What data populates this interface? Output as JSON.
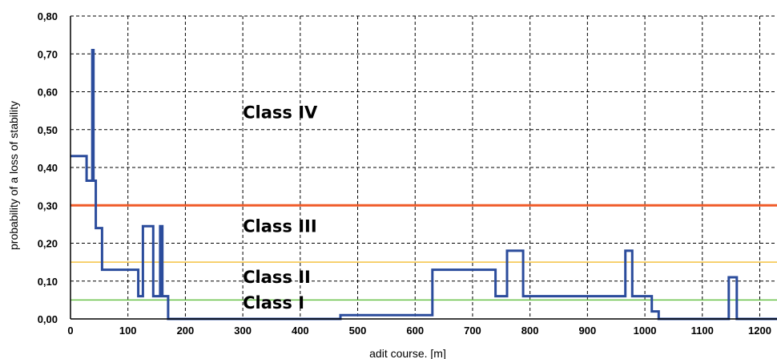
{
  "chart_data": {
    "type": "line",
    "title": "",
    "xlabel": "adit course. [m]",
    "ylabel": "probability of a loss of stability",
    "xlim": [
      0,
      1230
    ],
    "ylim": [
      0,
      0.8
    ],
    "grid": true,
    "grid_style": "dashed",
    "x_ticks": [
      0,
      100,
      200,
      300,
      400,
      500,
      600,
      700,
      800,
      900,
      1000,
      1100,
      1200
    ],
    "x_tick_labels": [
      "0",
      "100",
      "200",
      "300",
      "400",
      "500",
      "600",
      "700",
      "800",
      "900",
      "1000",
      "1100",
      "1200"
    ],
    "y_ticks": [
      0,
      0.1,
      0.2,
      0.3,
      0.4,
      0.5,
      0.6,
      0.7,
      0.8
    ],
    "y_tick_labels": [
      "0,00",
      "0,10",
      "0,20",
      "0,30",
      "0,40",
      "0,50",
      "0,60",
      "0,70",
      "0,80"
    ],
    "series": [
      {
        "color": "#2b4c9c",
        "step": true,
        "x": [
          0,
          28,
          28,
          38,
          38,
          40,
          40,
          42,
          42,
          44,
          44,
          48,
          48,
          55,
          55,
          118,
          118,
          126,
          126,
          144,
          144,
          156,
          156,
          160,
          160,
          170,
          170,
          470,
          470,
          630,
          630,
          740,
          740,
          760,
          760,
          788,
          788,
          966,
          966,
          978,
          978,
          1012,
          1012,
          1024,
          1024,
          1146,
          1146,
          1160,
          1160,
          1230
        ],
        "y": [
          0.43,
          0.43,
          0.365,
          0.365,
          0.71,
          0.71,
          0.365,
          0.365,
          0.365,
          0.365,
          0.24,
          0.24,
          0.24,
          0.24,
          0.13,
          0.13,
          0.06,
          0.06,
          0.245,
          0.245,
          0.06,
          0.06,
          0.245,
          0.245,
          0.06,
          0.06,
          0.0,
          0.0,
          0.01,
          0.01,
          0.13,
          0.13,
          0.06,
          0.06,
          0.18,
          0.18,
          0.06,
          0.06,
          0.18,
          0.18,
          0.06,
          0.06,
          0.02,
          0.02,
          0.0,
          0.0,
          0.11,
          0.11,
          0.0,
          0.0
        ]
      }
    ],
    "thresholds": [
      {
        "value": 0.3,
        "color": "#f05a28"
      },
      {
        "value": 0.15,
        "color": "#f5c242"
      },
      {
        "value": 0.05,
        "color": "#6ac24a"
      }
    ],
    "annotations": [
      {
        "text": "Class IV",
        "x": 300,
        "y": 0.53
      },
      {
        "text": "Class III",
        "x": 300,
        "y": 0.23
      },
      {
        "text": "Class II",
        "x": 300,
        "y": 0.095
      },
      {
        "text": "Class I",
        "x": 300,
        "y": 0.028
      }
    ]
  }
}
